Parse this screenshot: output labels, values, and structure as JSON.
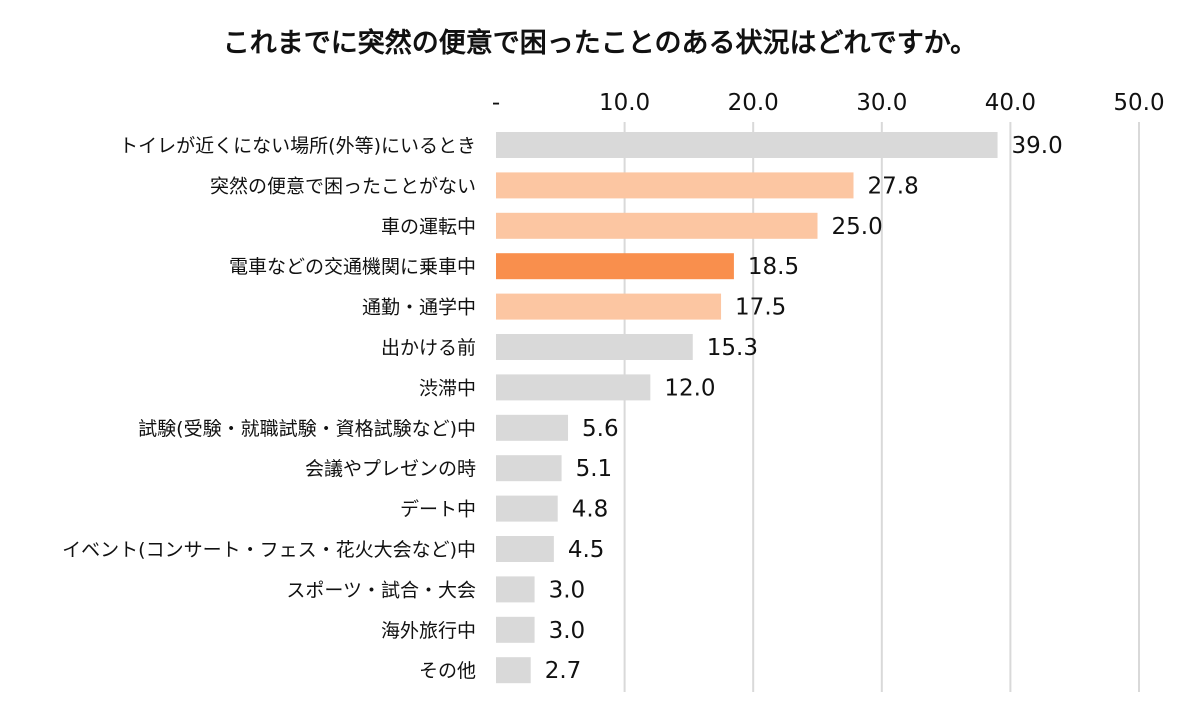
{
  "chart_data": {
    "type": "bar",
    "orientation": "horizontal",
    "title": "これまでに突然の便意で困ったことのある状況はどれですか。",
    "xlabel": "",
    "ylabel": "",
    "xlim": [
      0,
      50
    ],
    "ticks": [
      0,
      10,
      20,
      30,
      40,
      50
    ],
    "tick_labels": [
      "-",
      "10.0",
      "20.0",
      "30.0",
      "40.0",
      "50.0"
    ],
    "grid": true,
    "categories": [
      "トイレが近くにない場所(外等)にいるとき",
      "突然の便意で困ったことがない",
      "車の運転中",
      "電車などの交通機関に乗車中",
      "通勤・通学中",
      "出かける前",
      "渋滞中",
      "試験(受験・就職試験・資格試験など)中",
      "会議やプレゼンの時",
      "デート中",
      "イベント(コンサート・フェス・花火大会など)中",
      "スポーツ・試合・大会",
      "海外旅行中",
      "その他"
    ],
    "values": [
      39.0,
      27.8,
      25.0,
      18.5,
      17.5,
      15.3,
      12.0,
      5.6,
      5.1,
      4.8,
      4.5,
      3.0,
      3.0,
      2.7
    ],
    "value_labels": [
      "39.0",
      "27.8",
      "25.0",
      "18.5",
      "17.5",
      "15.3",
      "12.0",
      "5.6",
      "5.1",
      "4.8",
      "4.5",
      "3.0",
      "3.0",
      "2.7"
    ],
    "bar_colors": [
      "#d9d9d9",
      "#fcc6a2",
      "#fcc6a2",
      "#f98f4d",
      "#fcc6a2",
      "#d9d9d9",
      "#d9d9d9",
      "#d9d9d9",
      "#d9d9d9",
      "#d9d9d9",
      "#d9d9d9",
      "#d9d9d9",
      "#d9d9d9",
      "#d9d9d9"
    ],
    "gridline_color": "#d9d9d9"
  }
}
